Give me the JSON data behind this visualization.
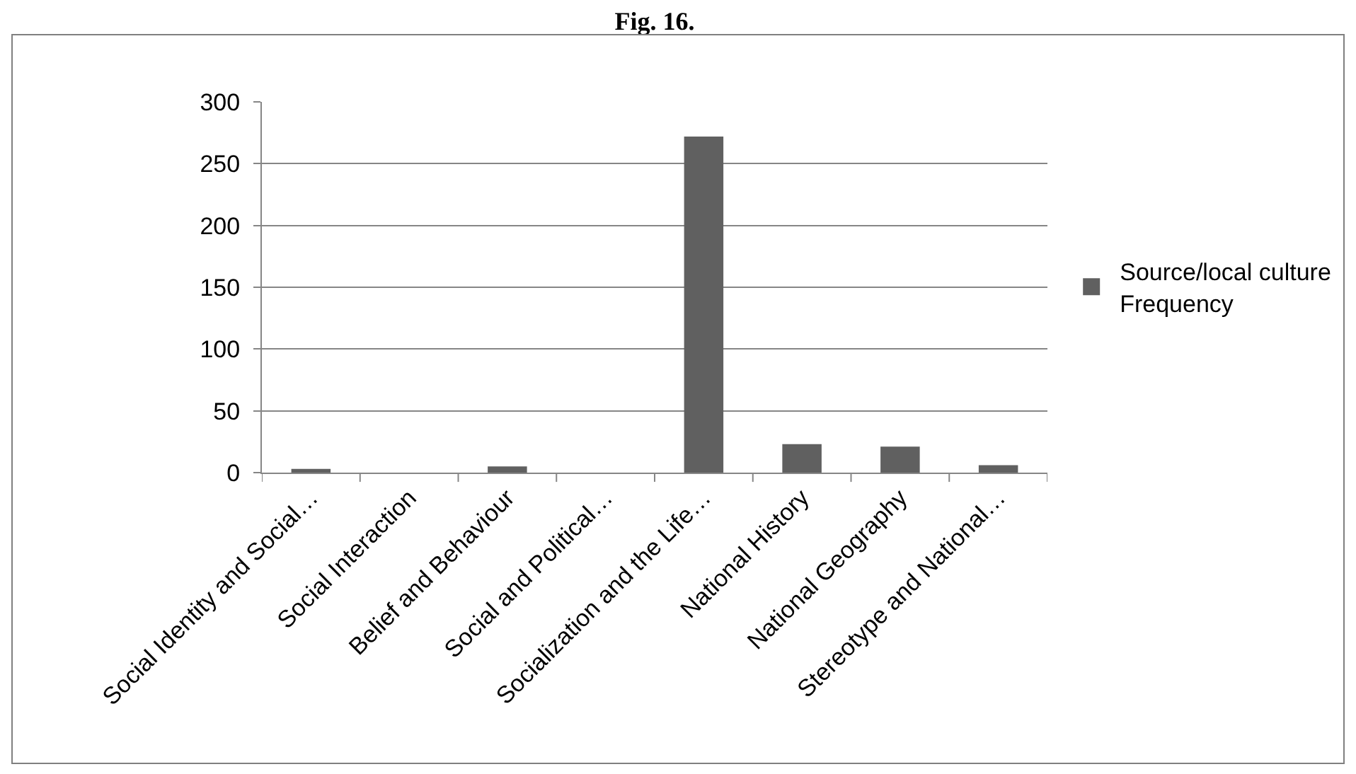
{
  "chart_data": {
    "type": "bar",
    "title": "Fig. 16.",
    "categories": [
      "Social Identity and Social…",
      "Social Interaction",
      "Belief and Behaviour",
      "Social and Political…",
      "Socialization and the Life…",
      "National History",
      "National Geography",
      "Stereotype and National…"
    ],
    "series": [
      {
        "name": "Source/local culture Frequency",
        "color": "#606060",
        "values": [
          3,
          0,
          5,
          0,
          272,
          23,
          21,
          6
        ]
      }
    ],
    "ylim": [
      0,
      300
    ],
    "yticks": [
      0,
      50,
      100,
      150,
      200,
      250,
      300
    ],
    "grid": "y",
    "legend": "right"
  }
}
